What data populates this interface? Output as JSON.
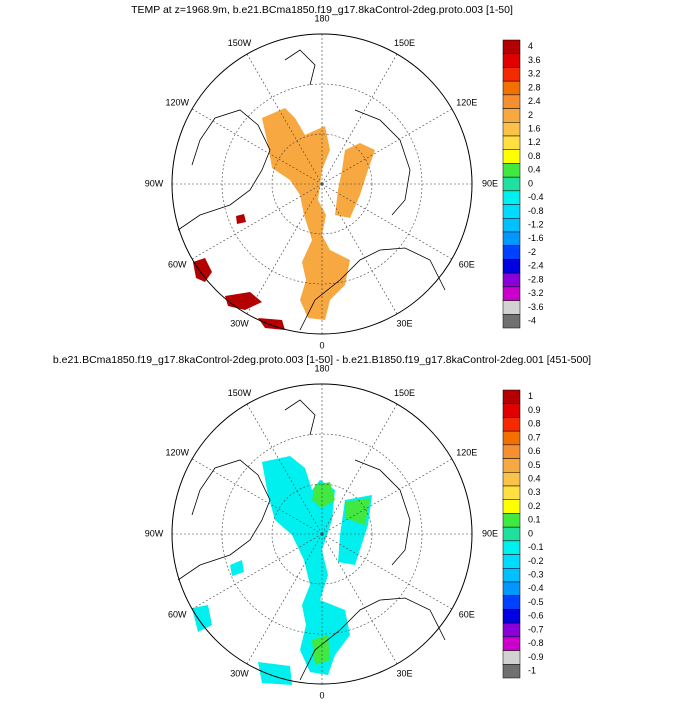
{
  "panels": [
    {
      "title": "TEMP at z=1968.9m, b.e21.BCma1850.f19_g17.8kaControl-2deg.proto.003 [1-50]",
      "lon_labels": [
        "180",
        "150E",
        "120E",
        "90E",
        "60E",
        "30E",
        "0",
        "30W",
        "60W",
        "90W",
        "120W",
        "150W"
      ],
      "colorbar": {
        "labels": [
          "4",
          "3.6",
          "3.2",
          "2.8",
          "2.4",
          "2",
          "1.6",
          "1.2",
          "0.8",
          "0.4",
          "0",
          "-0.4",
          "-0.8",
          "-1.2",
          "-1.6",
          "-2",
          "-2.4",
          "-2.8",
          "-3.2",
          "-3.6",
          "-4"
        ],
        "colors": [
          "#b40000",
          "#e00000",
          "#f52a00",
          "#f27000",
          "#f59030",
          "#f8a840",
          "#fbc24a",
          "#ffe040",
          "#ffff00",
          "#40e840",
          "#20e0a0",
          "#00f0f0",
          "#00dcff",
          "#00c0ff",
          "#0098ff",
          "#0040ff",
          "#0000e0",
          "#8a00d8",
          "#cc00cc",
          "#d2d2d2",
          "#707070"
        ]
      }
    },
    {
      "title": "b.e21.BCma1850.f19_g17.8kaControl-2deg.proto.003 [1-50] - b.e21.B1850.f19_g17.8kaControl-2deg.001 [451-500]",
      "lon_labels": [
        "180",
        "150E",
        "120E",
        "90E",
        "60E",
        "30E",
        "0",
        "30W",
        "60W",
        "90W",
        "120W",
        "150W"
      ],
      "colorbar": {
        "labels": [
          "1",
          "0.9",
          "0.8",
          "0.7",
          "0.6",
          "0.5",
          "0.4",
          "0.3",
          "0.2",
          "0.1",
          "0",
          "-0.1",
          "-0.2",
          "-0.3",
          "-0.4",
          "-0.5",
          "-0.6",
          "-0.7",
          "-0.8",
          "-0.9",
          "-1"
        ],
        "colors": [
          "#b40000",
          "#e00000",
          "#f52a00",
          "#f27000",
          "#f59030",
          "#f8a840",
          "#fbc24a",
          "#ffe040",
          "#ffff00",
          "#40e840",
          "#20e0a0",
          "#00f0f0",
          "#00dcff",
          "#00c0ff",
          "#0098ff",
          "#0040ff",
          "#0000e0",
          "#8a00d8",
          "#cc00cc",
          "#d2d2d2",
          "#707070"
        ]
      }
    }
  ]
}
